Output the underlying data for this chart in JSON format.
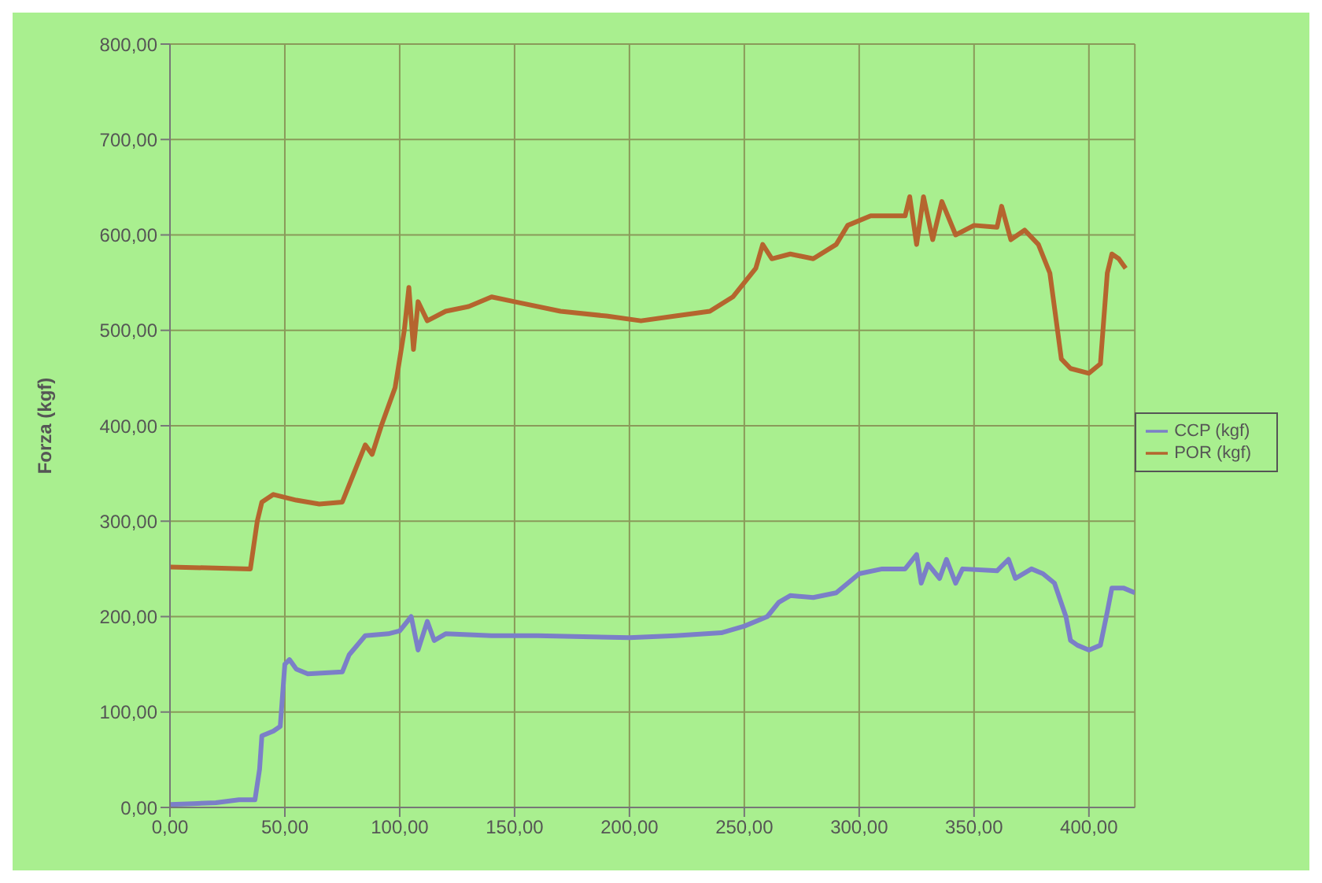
{
  "chart_data": {
    "type": "line",
    "ylabel": "Forza (kgf)",
    "xlim": [
      0,
      420
    ],
    "ylim": [
      0,
      800
    ],
    "xticks": [
      {
        "value": 0,
        "label": "0,00"
      },
      {
        "value": 50,
        "label": "50,00"
      },
      {
        "value": 100,
        "label": "100,00"
      },
      {
        "value": 150,
        "label": "150,00"
      },
      {
        "value": 200,
        "label": "200,00"
      },
      {
        "value": 250,
        "label": "250,00"
      },
      {
        "value": 300,
        "label": "300,00"
      },
      {
        "value": 350,
        "label": "350,00"
      },
      {
        "value": 400,
        "label": "400,00"
      }
    ],
    "yticks": [
      {
        "value": 0,
        "label": "0,00"
      },
      {
        "value": 100,
        "label": "100,00"
      },
      {
        "value": 200,
        "label": "200,00"
      },
      {
        "value": 300,
        "label": "300,00"
      },
      {
        "value": 400,
        "label": "400,00"
      },
      {
        "value": 500,
        "label": "500,00"
      },
      {
        "value": 600,
        "label": "600,00"
      },
      {
        "value": 700,
        "label": "700,00"
      },
      {
        "value": 800,
        "label": "800,00"
      }
    ],
    "grid": true,
    "legend": "right",
    "marker": "none",
    "line_style": "solid",
    "series": [
      {
        "name": "CCP (kgf)",
        "color": "#7b7fc8",
        "x": [
          0,
          10,
          20,
          30,
          37,
          39,
          40,
          45,
          48,
          50,
          52,
          55,
          60,
          75,
          78,
          85,
          95,
          100,
          105,
          108,
          112,
          115,
          120,
          140,
          160,
          200,
          220,
          240,
          250,
          260,
          265,
          270,
          280,
          290,
          300,
          310,
          320,
          325,
          327,
          330,
          335,
          338,
          342,
          345,
          360,
          365,
          368,
          375,
          380,
          385,
          390,
          392,
          395,
          400,
          405,
          408,
          410,
          415,
          420
        ],
        "values": [
          3,
          4,
          5,
          8,
          8,
          40,
          75,
          80,
          85,
          150,
          155,
          145,
          140,
          142,
          160,
          180,
          182,
          185,
          200,
          165,
          195,
          175,
          182,
          180,
          180,
          178,
          180,
          183,
          190,
          200,
          215,
          222,
          220,
          225,
          245,
          250,
          250,
          265,
          235,
          255,
          240,
          260,
          235,
          250,
          248,
          260,
          240,
          250,
          245,
          235,
          200,
          175,
          170,
          165,
          170,
          205,
          230,
          230,
          225
        ]
      },
      {
        "name": "POR (kgf)",
        "color": "#b5652e",
        "x": [
          0,
          35,
          38,
          40,
          45,
          55,
          65,
          75,
          80,
          85,
          88,
          92,
          98,
          102,
          104,
          106,
          108,
          112,
          120,
          130,
          140,
          150,
          170,
          190,
          205,
          220,
          235,
          245,
          255,
          258,
          262,
          270,
          280,
          290,
          295,
          305,
          320,
          322,
          325,
          328,
          332,
          336,
          342,
          350,
          360,
          362,
          366,
          372,
          378,
          383,
          388,
          392,
          400,
          405,
          408,
          410,
          413,
          416
        ],
        "values": [
          252,
          250,
          300,
          320,
          328,
          322,
          318,
          320,
          350,
          380,
          370,
          400,
          440,
          500,
          545,
          480,
          530,
          510,
          520,
          525,
          535,
          530,
          520,
          515,
          510,
          515,
          520,
          535,
          565,
          590,
          575,
          580,
          575,
          590,
          610,
          620,
          620,
          640,
          590,
          640,
          595,
          635,
          600,
          610,
          608,
          630,
          595,
          605,
          590,
          560,
          470,
          460,
          455,
          465,
          560,
          580,
          575,
          565
        ]
      }
    ]
  }
}
